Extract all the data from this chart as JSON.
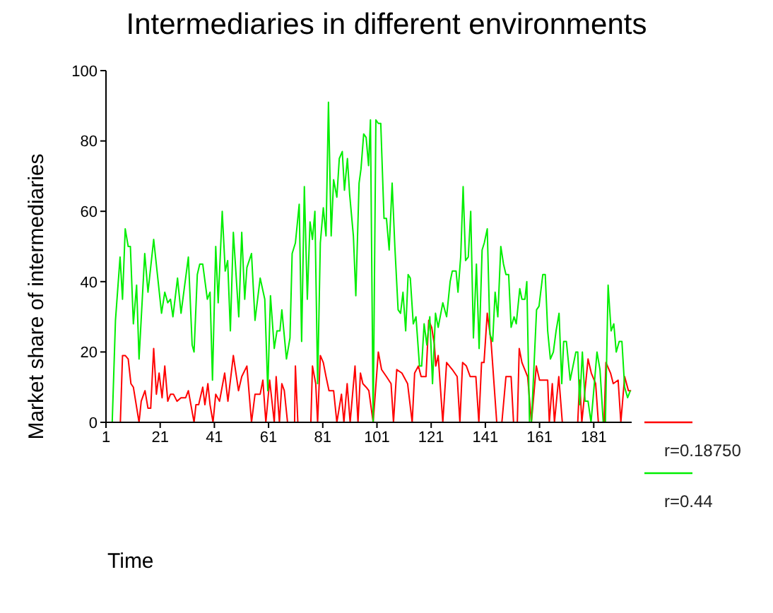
{
  "chart_data": {
    "type": "line",
    "title": "Intermediaries in different environments",
    "xlabel": "Time",
    "ylabel": "Market share of intermediaries",
    "xlim": [
      1,
      195
    ],
    "xticks": [
      1,
      21,
      41,
      61,
      81,
      101,
      121,
      141,
      161,
      181
    ],
    "ylim": [
      0,
      100
    ],
    "yticks": [
      0,
      20,
      40,
      60,
      80,
      100
    ],
    "grid": false,
    "legend": "right",
    "marker": "none",
    "line_style": "solid",
    "series": [
      {
        "name": "r=0.18750",
        "color": "#ff0000",
        "x": [
          1,
          6.3,
          7.1,
          8.1,
          9.2,
          10.2,
          11.1,
          13.2,
          14,
          15.4,
          16.5,
          17.5,
          18.6,
          19.6,
          20.6,
          21.7,
          22.7,
          23.8,
          24.8,
          25.9,
          27.2,
          28.7,
          30.4,
          31.4,
          33.5,
          34.2,
          35.2,
          36.7,
          37.5,
          38.6,
          39.4,
          40.5,
          41.5,
          42.9,
          44.8,
          46,
          48,
          49.9,
          51.1,
          53,
          54.7,
          56,
          57.9,
          58.9,
          60,
          61.4,
          63.1,
          63.8,
          65,
          65.9,
          66.8,
          68,
          70.6,
          70.9,
          71.8,
          76.6,
          77.2,
          78.4,
          79.1,
          80.1,
          81.2,
          82.2,
          83.3,
          85,
          86.2,
          87.9,
          88.8,
          90,
          91.1,
          92.9,
          94,
          94.9,
          95.8,
          97,
          98,
          99.6,
          101.5,
          102.7,
          104.5,
          106.2,
          107.1,
          108.3,
          110.2,
          112.3,
          114,
          114.9,
          116.3,
          117.3,
          119.1,
          120.1,
          121.2,
          122.2,
          122.7,
          123.6,
          125.3,
          126.7,
          128.8,
          130.6,
          131.6,
          132.6,
          134,
          135.4,
          137.5,
          138.6,
          139.6,
          140.5,
          141.7,
          143.1,
          145.2,
          147.1,
          148.6,
          150.5,
          151.4,
          152.8,
          153.5,
          154.5,
          156.6,
          158,
          159.8,
          161,
          164,
          164.6,
          165.7,
          166.5,
          168.1,
          169.4,
          175.1,
          175.8,
          176.6,
          178.9,
          180.1,
          181.7,
          182.7,
          184.8,
          185.5,
          187.2,
          188.2,
          190,
          191,
          192.4,
          193.8,
          194.8
        ],
        "values": [
          0,
          0,
          19,
          19,
          18,
          11,
          10,
          0,
          6,
          9,
          4,
          4,
          21,
          8,
          14,
          7,
          16,
          6,
          8,
          8,
          6,
          7,
          7,
          9,
          0,
          5,
          5,
          10,
          5,
          11,
          5,
          0,
          8,
          6,
          14,
          6,
          19,
          9,
          13,
          16,
          0,
          8,
          8,
          12,
          0,
          12,
          0,
          13,
          0,
          11,
          9,
          0,
          0,
          16,
          0,
          0,
          16,
          11,
          0,
          19,
          17,
          13,
          9,
          9,
          0,
          8,
          0,
          11,
          0,
          16,
          0,
          14,
          11,
          10,
          9,
          0,
          20,
          15,
          13,
          11,
          0,
          15,
          14,
          11,
          0,
          14,
          16,
          13,
          13,
          29,
          27,
          22,
          16,
          19,
          0,
          17,
          15,
          13,
          0,
          17,
          16,
          13,
          13,
          0,
          17,
          17,
          31,
          23,
          0,
          0,
          13,
          13,
          0,
          0,
          21,
          17,
          13,
          0,
          16,
          12,
          12,
          0,
          11,
          0,
          13,
          0,
          0,
          12,
          0,
          18,
          14,
          11,
          0,
          0,
          17,
          14,
          11,
          12,
          0,
          13,
          9,
          9
        ]
      },
      {
        "name": "r=0.44",
        "color": "#00ee00",
        "x": [
          1,
          3.3,
          4.5,
          6.2,
          7.1,
          8.1,
          9.2,
          10,
          11.1,
          12.3,
          13.2,
          15.3,
          16.5,
          18.6,
          21.5,
          22.7,
          23.8,
          24.8,
          25.7,
          27.4,
          28.7,
          31.4,
          32.8,
          33.5,
          34.7,
          35.6,
          36.7,
          38.4,
          39.4,
          40.3,
          41.5,
          42.4,
          43.9,
          45,
          45.9,
          46.9,
          48,
          50,
          51.1,
          52.2,
          53,
          54.7,
          56,
          57.9,
          59.6,
          60.7,
          61.7,
          63.1,
          64.1,
          65.2,
          65.9,
          67.6,
          68.9,
          69.7,
          70.9,
          72.3,
          73.2,
          74.2,
          75.3,
          76.3,
          77.2,
          78.1,
          79.1,
          80.1,
          81.2,
          82.2,
          83.1,
          84.1,
          85,
          86.2,
          87.1,
          88.2,
          89,
          90.1,
          90.9,
          92.3,
          93.2,
          94.4,
          95.1,
          96.1,
          97,
          97.9,
          98.6,
          99.6,
          100.6,
          101.5,
          102.4,
          103.6,
          104.5,
          105.5,
          106.6,
          107.6,
          108.8,
          109.7,
          110.6,
          111.6,
          112.5,
          113.3,
          114.4,
          115.4,
          116.7,
          117.5,
          118.4,
          119.4,
          120.5,
          121.5,
          122.6,
          123.6,
          125.3,
          126.7,
          128,
          128.8,
          130.2,
          130.9,
          131.9,
          132.8,
          133.7,
          134.7,
          135.6,
          136.6,
          137.7,
          138.7,
          139.8,
          140.6,
          141.7,
          142.7,
          143.7,
          144.6,
          145.6,
          146.7,
          147.7,
          148.6,
          149.6,
          150.5,
          151.6,
          152.4,
          153.7,
          154.5,
          155.6,
          156.3,
          157.3,
          158,
          159.9,
          160.8,
          162.2,
          163.1,
          164,
          165,
          166.1,
          167.1,
          168.2,
          169.2,
          169.9,
          170.9,
          172.3,
          174.4,
          175.1,
          175.8,
          176.8,
          177.8,
          178.9,
          180,
          181,
          182.2,
          183.3,
          184.5,
          185.3,
          186.3,
          187.4,
          188.4,
          189.3,
          190.4,
          191.4,
          192.4,
          193.5,
          194.5
        ],
        "values": [
          0,
          0,
          29,
          47,
          35,
          55,
          50,
          50,
          28,
          39,
          18,
          48,
          37,
          52,
          31,
          37,
          34,
          35,
          30,
          41,
          31,
          47,
          22,
          20,
          42,
          45,
          45,
          35,
          37,
          12,
          50,
          34,
          60,
          43,
          46,
          26,
          54,
          30,
          54,
          35,
          44,
          48,
          29,
          41,
          35,
          9,
          36,
          21,
          26,
          26,
          32,
          18,
          24,
          48,
          51,
          62,
          23,
          67,
          35,
          57,
          52,
          60,
          11,
          51,
          61,
          53,
          91,
          53,
          69,
          64,
          75,
          77,
          66,
          75,
          65,
          53,
          36,
          68,
          72,
          82,
          81,
          73,
          86,
          0,
          86,
          85,
          85,
          58,
          58,
          49,
          68,
          50,
          32,
          31,
          37,
          26,
          42,
          41,
          28,
          30,
          16,
          16,
          28,
          22,
          30,
          11,
          31,
          27,
          34,
          30,
          40,
          43,
          43,
          37,
          47,
          67,
          46,
          47,
          60,
          24,
          45,
          21,
          49,
          51,
          55,
          25,
          23,
          37,
          30,
          50,
          45,
          42,
          42,
          27,
          30,
          28,
          38,
          35,
          35,
          40,
          0,
          0,
          32,
          33,
          42,
          42,
          26,
          18,
          20,
          26,
          31,
          11,
          23,
          23,
          12,
          20,
          20,
          5,
          20,
          6,
          6,
          0,
          9,
          20,
          15,
          0,
          0,
          39,
          26,
          28,
          20,
          23,
          23,
          10,
          7,
          9
        ]
      }
    ]
  }
}
